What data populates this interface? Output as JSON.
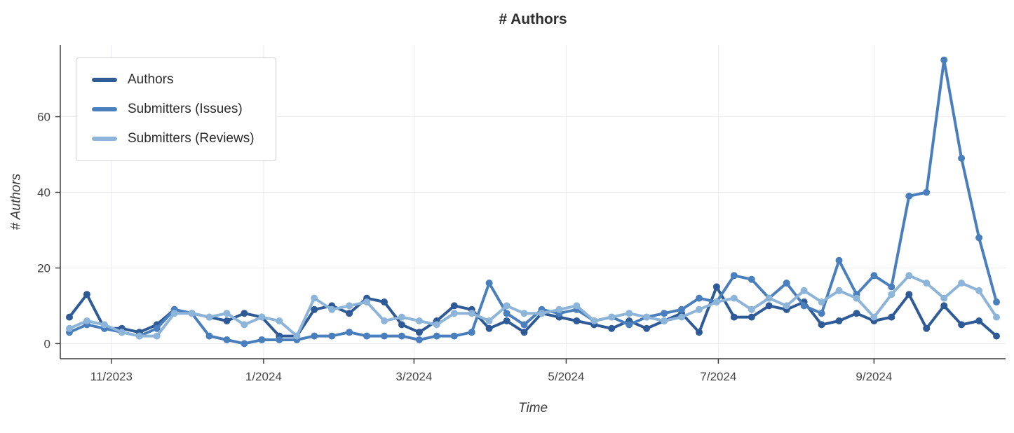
{
  "chart_data": {
    "type": "line",
    "title": "# Authors",
    "xlabel": "Time",
    "ylabel": "# Authors",
    "grid": true,
    "legend_position": "top-left",
    "x_count": 54,
    "x_ticks": [
      {
        "label": "11/2023",
        "pos": 2.4
      },
      {
        "label": "1/2024",
        "pos": 11.1
      },
      {
        "label": "3/2024",
        "pos": 19.7
      },
      {
        "label": "5/2024",
        "pos": 28.4
      },
      {
        "label": "7/2024",
        "pos": 37.1
      },
      {
        "label": "9/2024",
        "pos": 46.0
      }
    ],
    "y_ticks": [
      0,
      20,
      40,
      60
    ],
    "ylim": [
      -4,
      79
    ],
    "series": [
      {
        "name": "Authors",
        "color": "#2e5b97",
        "values": [
          7,
          13,
          4,
          4,
          3,
          5,
          9,
          8,
          7,
          6,
          8,
          7,
          2,
          2,
          9,
          10,
          8,
          12,
          11,
          5,
          3,
          6,
          10,
          9,
          4,
          6,
          3,
          8,
          7,
          6,
          5,
          4,
          6,
          4,
          6,
          8,
          3,
          15,
          7,
          7,
          10,
          9,
          11,
          5,
          6,
          8,
          6,
          7,
          13,
          4,
          10,
          5,
          6,
          2
        ]
      },
      {
        "name": "Submitters (Issues)",
        "color": "#4a7fbe",
        "values": [
          3,
          5,
          4,
          3,
          2,
          4,
          9,
          8,
          2,
          1,
          0,
          1,
          1,
          1,
          2,
          2,
          3,
          2,
          2,
          2,
          1,
          2,
          2,
          3,
          16,
          8,
          5,
          9,
          8,
          9,
          6,
          7,
          5,
          7,
          8,
          9,
          12,
          11,
          18,
          17,
          12,
          16,
          10,
          8,
          22,
          13,
          18,
          15,
          39,
          40,
          75,
          49,
          28,
          11
        ]
      },
      {
        "name": "Submitters (Reviews)",
        "color": "#8db4d9",
        "values": [
          4,
          6,
          5,
          3,
          2,
          2,
          8,
          8,
          7,
          8,
          5,
          7,
          6,
          2,
          12,
          9,
          10,
          11,
          6,
          7,
          6,
          5,
          8,
          8,
          6,
          10,
          8,
          8,
          9,
          10,
          6,
          7,
          8,
          7,
          6,
          7,
          9,
          11,
          12,
          9,
          12,
          10,
          14,
          11,
          14,
          12,
          7,
          13,
          18,
          16,
          12,
          16,
          14,
          7
        ]
      }
    ],
    "style": {
      "grid_color": "#ebebf0",
      "axis_color": "#3f3f3f",
      "background": "#ffffff"
    }
  }
}
